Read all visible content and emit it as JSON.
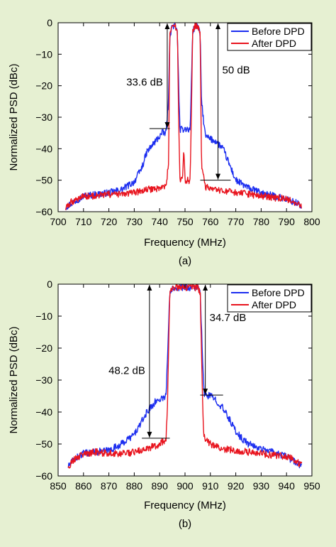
{
  "colors": {
    "before": "#1c2ef0",
    "after": "#e8141e",
    "panel_bg": "#ffffff",
    "figure_bg": "#e6f0d2"
  },
  "chart_data": [
    {
      "type": "line",
      "caption": "(a)",
      "xlabel": "Frequency (MHz)",
      "ylabel": "Normalized PSD (dBc)",
      "xlim": [
        700,
        800
      ],
      "ylim": [
        -60,
        0
      ],
      "xticks": [
        700,
        710,
        720,
        730,
        740,
        750,
        760,
        770,
        780,
        790,
        800
      ],
      "yticks": [
        0,
        -10,
        -20,
        -30,
        -40,
        -50,
        -60
      ],
      "grid": false,
      "legend_position": "top-right",
      "series": [
        {
          "name": "Before DPD",
          "color_key": "before",
          "x": [
            703,
            705,
            710,
            715,
            720,
            725,
            730,
            733,
            735,
            738,
            741,
            742.5,
            743.5,
            744,
            745,
            746,
            747,
            747.5,
            748,
            748.5,
            750,
            751.5,
            752,
            752.5,
            753,
            754,
            755,
            756,
            756.5,
            758,
            760,
            762,
            765,
            768,
            770,
            775,
            780,
            785,
            790,
            793,
            795,
            796
          ],
          "y": [
            -58.5,
            -57.5,
            -55,
            -54.5,
            -54,
            -53,
            -50.5,
            -46,
            -41,
            -38,
            -35,
            -35,
            -25,
            -4,
            -1,
            -1,
            -3,
            -20,
            -34,
            -34,
            -33.5,
            -34,
            -34,
            -20,
            -3,
            -1,
            -1,
            -4,
            -25,
            -36,
            -37,
            -37.5,
            -40,
            -46,
            -50,
            -52.5,
            -54,
            -55,
            -56,
            -57,
            -57.5,
            -59
          ]
        },
        {
          "name": "After DPD",
          "color_key": "after",
          "x": [
            703,
            705,
            710,
            715,
            720,
            725,
            730,
            735,
            740,
            742.5,
            743.5,
            744,
            745,
            746,
            747,
            747.5,
            748,
            749,
            749.5,
            750,
            751,
            752,
            752.5,
            753,
            754,
            755,
            756,
            756.5,
            758,
            760,
            765,
            770,
            775,
            780,
            785,
            790,
            793,
            796
          ],
          "y": [
            -59,
            -57,
            -55,
            -55,
            -54.5,
            -54.5,
            -54,
            -53,
            -52.5,
            -52,
            -45,
            -4,
            -1,
            -1,
            -3,
            -30,
            -50,
            -50,
            -39,
            -50,
            -50,
            -50,
            -30,
            -3,
            -1,
            -1,
            -4,
            -45,
            -52,
            -53,
            -53.5,
            -54,
            -54.5,
            -55,
            -55.5,
            -56,
            -57,
            -58
          ]
        }
      ],
      "annotations": [
        {
          "label": "33.6 dB",
          "x": 743,
          "y_top": 0,
          "y_bottom": -33.6,
          "ref_line": [
            736,
            744
          ]
        },
        {
          "label": "50 dB",
          "x": 763,
          "y_top": 0,
          "y_bottom": -50,
          "ref_line": [
            756,
            768
          ]
        }
      ]
    },
    {
      "type": "line",
      "caption": "(b)",
      "xlabel": "Frequency (MHz)",
      "ylabel": "Normalized PSD (dBc)",
      "xlim": [
        850,
        950
      ],
      "ylim": [
        -60,
        0
      ],
      "xticks": [
        850,
        860,
        870,
        880,
        890,
        900,
        910,
        920,
        930,
        940,
        950
      ],
      "yticks": [
        0,
        -10,
        -20,
        -30,
        -40,
        -50,
        -60
      ],
      "grid": false,
      "legend_position": "top-right",
      "series": [
        {
          "name": "Before DPD",
          "color_key": "before",
          "x": [
            854,
            856,
            860,
            865,
            870,
            875,
            880,
            883,
            885,
            888,
            890,
            892.5,
            893,
            894,
            895,
            900,
            905,
            906,
            907,
            907.5,
            910,
            912,
            915,
            918,
            920,
            922,
            925,
            930,
            935,
            940,
            943,
            946
          ],
          "y": [
            -57,
            -55,
            -53,
            -52.5,
            -52,
            -50,
            -47,
            -43,
            -40,
            -37,
            -36,
            -35,
            -25,
            -3,
            -1,
            -1,
            -1,
            -3,
            -25,
            -34.5,
            -35,
            -36,
            -39,
            -43,
            -46,
            -48,
            -50,
            -51.5,
            -52.5,
            -54,
            -55.5,
            -57
          ]
        },
        {
          "name": "After DPD",
          "color_key": "after",
          "x": [
            854,
            856,
            860,
            865,
            870,
            875,
            880,
            885,
            890,
            892.5,
            893,
            894,
            895,
            900,
            905,
            906,
            907,
            907.5,
            910,
            915,
            920,
            925,
            930,
            935,
            940,
            943,
            946
          ],
          "y": [
            -57,
            -55,
            -53,
            -52.5,
            -53,
            -53,
            -52.5,
            -51.5,
            -50,
            -48.5,
            -40,
            -3,
            -1,
            -1,
            -1,
            -3,
            -40,
            -48,
            -50,
            -51.5,
            -52,
            -52.5,
            -53,
            -53.5,
            -54,
            -55,
            -56.5
          ]
        }
      ],
      "annotations": [
        {
          "label": "48.2 dB",
          "x": 886,
          "y_top": 0,
          "y_bottom": -48.2,
          "ref_line": [
            883,
            894
          ]
        },
        {
          "label": "34.7 dB",
          "x": 908,
          "y_top": 0,
          "y_bottom": -34.7,
          "ref_line": [
            906,
            915
          ]
        }
      ]
    }
  ]
}
